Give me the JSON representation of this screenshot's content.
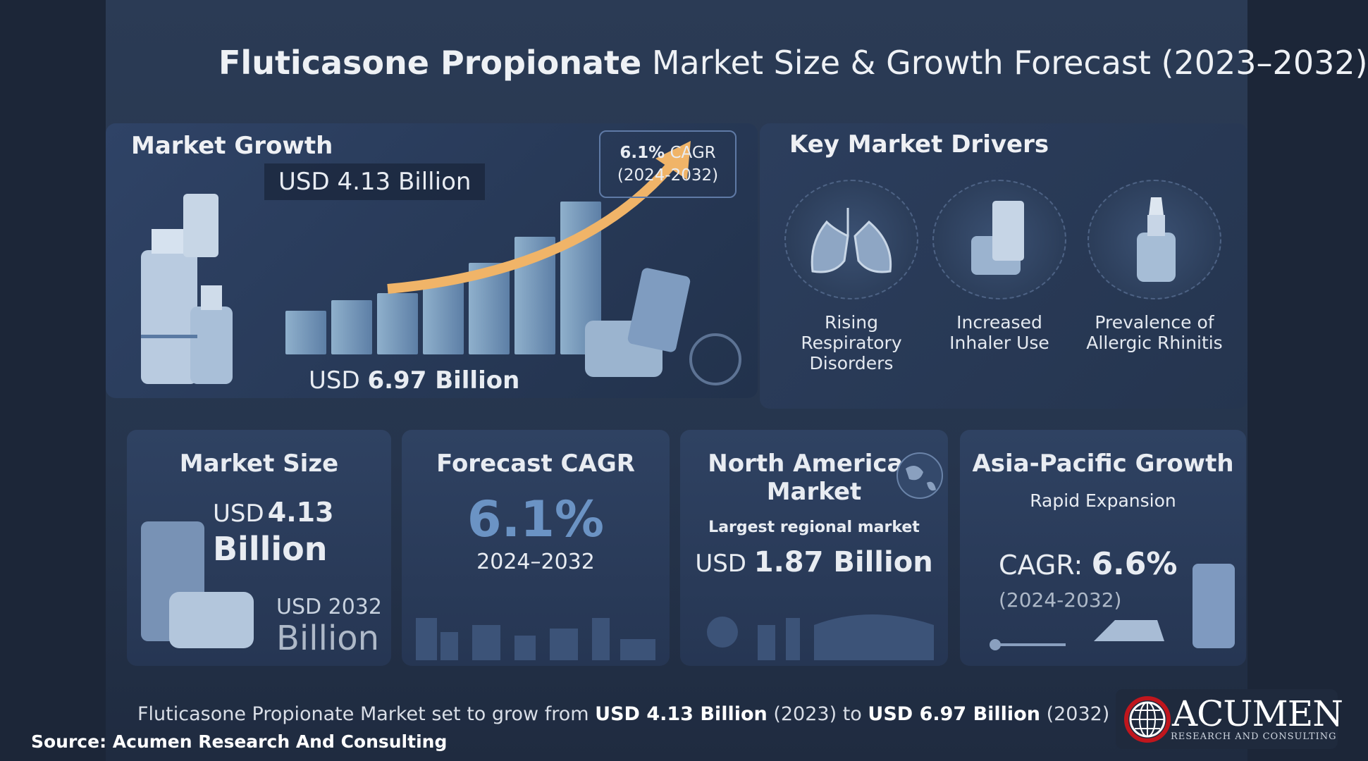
{
  "title": {
    "bold": "Fluticasone Propionate",
    "rest": "Market Size & Growth Forecast (2023–2032)"
  },
  "market_growth": {
    "heading": "Market Growth",
    "label_top": "USD 4.13 Billion",
    "label_bottom_prefix": "USD",
    "label_bottom_value": "6.97 Billion",
    "cagr_value": "6.1%",
    "cagr_label": "CAGR",
    "cagr_period": "(2024-2032)",
    "arrow_color": "#f0b468"
  },
  "drivers": {
    "heading": "Key Market Drivers",
    "items": [
      {
        "icon": "lungs-icon",
        "label1": "Rising",
        "label2": "Respiratory",
        "label3": "Disorders"
      },
      {
        "icon": "inhaler-icon",
        "label1": "Increased",
        "label2": "Inhaler Use",
        "label3": ""
      },
      {
        "icon": "nasal-spray-icon",
        "label1": "Prevalence of",
        "label2": "Allergic Rhinitis",
        "label3": ""
      }
    ]
  },
  "cards": {
    "market_size": {
      "title": "Market Size",
      "value_prefix": "USD",
      "value": "4.13",
      "value_unit": "Billion",
      "sub1": "USD 2032",
      "sub2": "Billion"
    },
    "forecast_cagr": {
      "title": "Forecast CAGR",
      "value": "6.1%",
      "period": "2024–2032"
    },
    "north_america": {
      "title1": "North American",
      "title2": "Market",
      "sub": "Largest regional market",
      "value_prefix": "USD",
      "value": "1.87 Billion"
    },
    "asia_pacific": {
      "title": "Asia-Pacific Growth",
      "sub": "Rapid Expansion",
      "cagr_label": "CAGR:",
      "cagr_value": "6.6%",
      "period": "(2024-2032)"
    }
  },
  "footer": {
    "t1": "Fluticasone Propionate Market",
    "t2": "set to grow from",
    "t3": "USD 4.13 Billion",
    "t4": "(2023) to",
    "t5": "USD 6.97 Billion",
    "t6": "(2032)"
  },
  "source": "Source: Acumen Research And Consulting",
  "logo": {
    "name": "ACUMEN",
    "tagline": "RESEARCH AND CONSULTING",
    "accent": "#c0161d"
  }
}
